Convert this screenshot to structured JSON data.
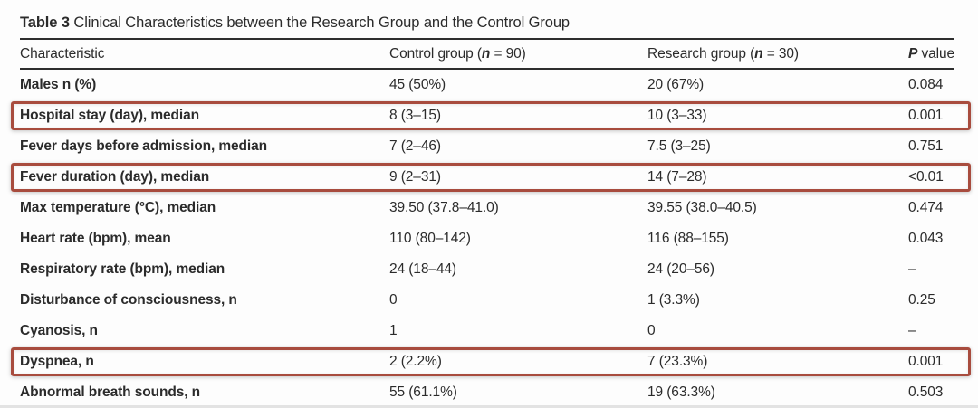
{
  "title": {
    "label": "Table 3",
    "text": " Clinical Characteristics between the Research Group and the Control Group"
  },
  "columns": {
    "characteristic": "Characteristic",
    "control": {
      "pre": "Control group (",
      "n": "n",
      "post": " = 90)"
    },
    "research": {
      "pre": "Research group (",
      "n": "n",
      "post": " = 30)"
    },
    "pvalue": {
      "p": "P",
      "rest": " value"
    }
  },
  "rows": [
    {
      "characteristic": "Males n (%)",
      "control": "45 (50%)",
      "research": "20 (67%)",
      "p": "0.084",
      "highlighted": false
    },
    {
      "characteristic": "Hospital stay (day), median",
      "control": "8 (3–15)",
      "research": "10 (3–33)",
      "p": "0.001",
      "highlighted": true
    },
    {
      "characteristic": "Fever days before admission, median",
      "control": "7 (2–46)",
      "research": "7.5 (3–25)",
      "p": "0.751",
      "highlighted": false
    },
    {
      "characteristic": "Fever duration (day), median",
      "control": "9 (2–31)",
      "research": "14 (7–28)",
      "p": "<0.01",
      "highlighted": true
    },
    {
      "characteristic": "Max temperature (°C), median",
      "control": "39.50 (37.8–41.0)",
      "research": "39.55 (38.0–40.5)",
      "p": "0.474",
      "highlighted": false
    },
    {
      "characteristic": "Heart rate (bpm), mean",
      "control": "110 (80–142)",
      "research": "116 (88–155)",
      "p": "0.043",
      "highlighted": false
    },
    {
      "characteristic": "Respiratory rate (bpm), median",
      "control": "24 (18–44)",
      "research": "24 (20–56)",
      "p": "–",
      "highlighted": false
    },
    {
      "characteristic": "Disturbance of consciousness, n",
      "control": "0",
      "research": "1 (3.3%)",
      "p": "0.25",
      "highlighted": false
    },
    {
      "characteristic": "Cyanosis, n",
      "control": "1",
      "research": "0",
      "p": "–",
      "highlighted": false
    },
    {
      "characteristic": "Dyspnea, n",
      "control": "2 (2.2%)",
      "research": "7 (23.3%)",
      "p": "0.001",
      "highlighted": true
    },
    {
      "characteristic": "Abnormal breath sounds, n",
      "control": "55 (61.1%)",
      "research": "19 (63.3%)",
      "p": "0.503",
      "highlighted": false
    }
  ],
  "highlight_color": "#a84c3e",
  "rule_color": "#2e2e2e",
  "chart_data": {
    "type": "table",
    "title": "Table 3 Clinical Characteristics between the Research Group and the Control Group",
    "columns": [
      "Characteristic",
      "Control group (n = 90)",
      "Research group (n = 30)",
      "P value"
    ],
    "rows": [
      [
        "Males n (%)",
        "45 (50%)",
        "20 (67%)",
        "0.084"
      ],
      [
        "Hospital stay (day), median",
        "8 (3–15)",
        "10 (3–33)",
        "0.001"
      ],
      [
        "Fever days before admission, median",
        "7 (2–46)",
        "7.5 (3–25)",
        "0.751"
      ],
      [
        "Fever duration (day), median",
        "9 (2–31)",
        "14 (7–28)",
        "<0.01"
      ],
      [
        "Max temperature (°C), median",
        "39.50 (37.8–41.0)",
        "39.55 (38.0–40.5)",
        "0.474"
      ],
      [
        "Heart rate (bpm), mean",
        "110 (80–142)",
        "116 (88–155)",
        "0.043"
      ],
      [
        "Respiratory rate (bpm), median",
        "24 (18–44)",
        "24 (20–56)",
        "–"
      ],
      [
        "Disturbance of consciousness, n",
        "0",
        "1 (3.3%)",
        "0.25"
      ],
      [
        "Cyanosis, n",
        "1",
        "0",
        "–"
      ],
      [
        "Dyspnea, n",
        "2 (2.2%)",
        "7 (23.3%)",
        "0.001"
      ],
      [
        "Abnormal breath sounds, n",
        "55 (61.1%)",
        "19 (63.3%)",
        "0.503"
      ]
    ],
    "annotations": "red rectangle highlights around rows: Hospital stay (day) median; Fever duration (day) median; Dyspnea n"
  }
}
